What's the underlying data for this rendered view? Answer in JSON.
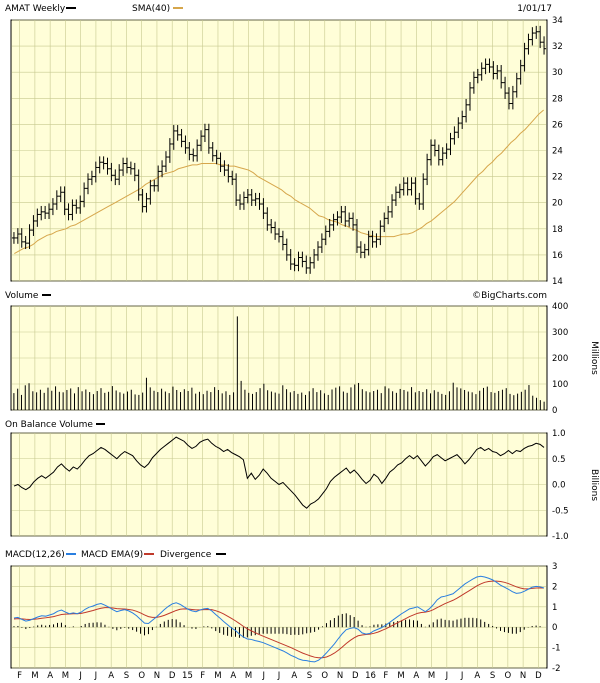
{
  "header": {
    "symbol_label": "AMAT Weekly",
    "sma_label": "SMA(40)",
    "date_label": "1/01/17"
  },
  "watermark": "©BigCharts.com",
  "colors": {
    "background": "#fffed8",
    "grid": "#c7c98f",
    "price": "#000000",
    "sma": "#d6a64b",
    "macd": "#2a7fe0",
    "ema": "#c0392b",
    "volume": "#000000"
  },
  "x_axis_labels": [
    "F",
    "M",
    "A",
    "M",
    "J",
    "J",
    "A",
    "S",
    "O",
    "N",
    "D",
    "15",
    "F",
    "M",
    "A",
    "M",
    "J",
    "J",
    "A",
    "S",
    "O",
    "N",
    "D",
    "16",
    "F",
    "M",
    "A",
    "M",
    "J",
    "J",
    "A",
    "S",
    "O",
    "N",
    "D"
  ],
  "chart_data": [
    {
      "type": "ohlc",
      "panel": "price",
      "legend": [
        "AMAT Weekly",
        "SMA(40)"
      ],
      "ylim": [
        14,
        34
      ],
      "yticks": [
        14,
        16,
        18,
        20,
        22,
        24,
        26,
        28,
        30,
        32,
        34
      ],
      "series": [
        {
          "name": "AMAT Weekly",
          "close": [
            17.3,
            17.6,
            17.0,
            16.9,
            17.9,
            18.6,
            19.1,
            19.3,
            19.2,
            19.5,
            19.9,
            20.5,
            20.8,
            19.5,
            19.1,
            19.8,
            19.6,
            20.1,
            21.1,
            21.8,
            22.0,
            22.7,
            23.1,
            23.0,
            22.6,
            22.1,
            21.8,
            22.5,
            23.0,
            22.7,
            22.6,
            22.1,
            20.6,
            19.7,
            20.3,
            21.3,
            21.3,
            22.4,
            22.8,
            23.5,
            24.5,
            25.5,
            25.2,
            24.7,
            24.2,
            23.7,
            23.6,
            24.4,
            25.1,
            25.6,
            24.2,
            23.6,
            23.4,
            22.8,
            22.5,
            22.0,
            21.8,
            20.2,
            19.9,
            20.4,
            20.6,
            20.2,
            20.3,
            19.9,
            19.2,
            18.3,
            18.1,
            17.6,
            17.4,
            16.8,
            16.0,
            15.3,
            15.2,
            15.8,
            15.5,
            15.0,
            15.4,
            16.0,
            16.6,
            17.2,
            17.8,
            18.3,
            18.7,
            18.9,
            19.3,
            18.6,
            18.8,
            18.3,
            16.6,
            16.2,
            16.4,
            17.4,
            17.0,
            17.2,
            18.2,
            18.8,
            19.3,
            20.2,
            20.8,
            21.0,
            21.5,
            21.0,
            21.5,
            20.3,
            19.9,
            21.8,
            23.3,
            24.4,
            24.0,
            23.3,
            23.8,
            24.1,
            24.9,
            25.4,
            26.1,
            26.6,
            27.5,
            28.8,
            29.6,
            29.8,
            30.3,
            30.6,
            30.4,
            29.9,
            30.1,
            29.2,
            28.4,
            27.6,
            28.5,
            29.5,
            30.5,
            31.8,
            32.5,
            33.0,
            33.1,
            32.3,
            31.8
          ]
        },
        {
          "name": "SMA(40)",
          "values": [
            16.1,
            16.3,
            16.5,
            16.6,
            16.8,
            17.1,
            17.3,
            17.5,
            17.6,
            17.8,
            17.9,
            18.0,
            18.2,
            18.3,
            18.5,
            18.7,
            18.9,
            19.1,
            19.3,
            19.5,
            19.7,
            19.9,
            20.1,
            20.3,
            20.5,
            20.7,
            20.9,
            21.1,
            21.4,
            21.6,
            21.8,
            22.0,
            22.2,
            22.3,
            22.4,
            22.6,
            22.7,
            22.8,
            22.9,
            22.9,
            23.0,
            23.0,
            23.0,
            23.0,
            22.9,
            22.9,
            22.8,
            22.8,
            22.7,
            22.6,
            22.5,
            22.3,
            22.0,
            21.8,
            21.6,
            21.4,
            21.2,
            21.0,
            20.7,
            20.5,
            20.2,
            20.0,
            19.8,
            19.6,
            19.3,
            19.0,
            18.9,
            18.7,
            18.6,
            18.5,
            18.3,
            18.2,
            18.0,
            17.9,
            17.7,
            17.6,
            17.5,
            17.4,
            17.4,
            17.4,
            17.4,
            17.4,
            17.5,
            17.6,
            17.6,
            17.7,
            17.9,
            18.1,
            18.4,
            18.6,
            18.9,
            19.2,
            19.5,
            19.8,
            20.1,
            20.5,
            20.9,
            21.3,
            21.7,
            22.1,
            22.4,
            22.8,
            23.1,
            23.5,
            23.8,
            24.2,
            24.6,
            24.9,
            25.3,
            25.6,
            26.0,
            26.4,
            26.8,
            27.1
          ]
        }
      ]
    },
    {
      "type": "bar",
      "panel": "volume",
      "legend": [
        "Volume"
      ],
      "ylabel": "Millions",
      "ylim": [
        0,
        400
      ],
      "yticks": [
        0,
        100,
        200,
        300,
        400
      ],
      "values": [
        65,
        82,
        58,
        95,
        103,
        72,
        68,
        78,
        66,
        86,
        74,
        91,
        70,
        68,
        77,
        83,
        64,
        88,
        72,
        79,
        69,
        61,
        73,
        84,
        66,
        70,
        92,
        75,
        68,
        63,
        71,
        78,
        60,
        58,
        67,
        124,
        87,
        74,
        69,
        82,
        71,
        65,
        90,
        77,
        69,
        80,
        73,
        86,
        63,
        70,
        61,
        74,
        69,
        88,
        77,
        64,
        72,
        58,
        68,
        360,
        112,
        78,
        66,
        62,
        69,
        84,
        101,
        76,
        71,
        67,
        63,
        95,
        80,
        68,
        73,
        62,
        67,
        58,
        72,
        84,
        69,
        76,
        64,
        58,
        79,
        86,
        91,
        71,
        66,
        87,
        98,
        104,
        80,
        72,
        68,
        73,
        78,
        65,
        91,
        83,
        72,
        66,
        81,
        77,
        71,
        88,
        68,
        73,
        69,
        80,
        64,
        76,
        70,
        62,
        58,
        72,
        105,
        87,
        83,
        77,
        71,
        68,
        61,
        74,
        85,
        90,
        69,
        66,
        73,
        78,
        84,
        62,
        57,
        63,
        70,
        78,
        96,
        55,
        47,
        38,
        32
      ]
    },
    {
      "type": "line",
      "panel": "on_balance_volume",
      "legend": [
        "On Balance Volume"
      ],
      "ylabel": "Billions",
      "ylim": [
        -1.0,
        1.0
      ],
      "yticks": [
        -1.0,
        -0.5,
        0.0,
        0.5,
        1.0
      ],
      "values": [
        -0.03,
        0.0,
        -0.06,
        -0.1,
        -0.05,
        0.05,
        0.12,
        0.17,
        0.12,
        0.18,
        0.24,
        0.34,
        0.4,
        0.32,
        0.26,
        0.34,
        0.3,
        0.38,
        0.48,
        0.56,
        0.6,
        0.66,
        0.72,
        0.68,
        0.62,
        0.56,
        0.5,
        0.58,
        0.64,
        0.6,
        0.56,
        0.46,
        0.38,
        0.33,
        0.4,
        0.52,
        0.6,
        0.68,
        0.74,
        0.8,
        0.86,
        0.92,
        0.88,
        0.84,
        0.76,
        0.7,
        0.74,
        0.82,
        0.86,
        0.88,
        0.8,
        0.74,
        0.7,
        0.64,
        0.68,
        0.62,
        0.58,
        0.54,
        0.48,
        0.12,
        0.22,
        0.1,
        0.18,
        0.3,
        0.22,
        0.12,
        0.06,
        0.0,
        0.04,
        -0.04,
        -0.12,
        -0.2,
        -0.3,
        -0.4,
        -0.46,
        -0.38,
        -0.34,
        -0.28,
        -0.18,
        -0.08,
        0.06,
        0.14,
        0.2,
        0.26,
        0.32,
        0.22,
        0.28,
        0.2,
        0.1,
        0.02,
        0.08,
        0.2,
        0.14,
        0.02,
        0.12,
        0.24,
        0.3,
        0.38,
        0.42,
        0.5,
        0.56,
        0.5,
        0.56,
        0.46,
        0.36,
        0.44,
        0.54,
        0.58,
        0.52,
        0.46,
        0.5,
        0.54,
        0.58,
        0.5,
        0.4,
        0.48,
        0.58,
        0.68,
        0.72,
        0.66,
        0.7,
        0.64,
        0.62,
        0.56,
        0.6,
        0.66,
        0.6,
        0.66,
        0.64,
        0.7,
        0.74,
        0.76,
        0.8,
        0.78,
        0.72
      ]
    },
    {
      "type": "line",
      "panel": "macd",
      "legend": [
        "MACD(12,26)",
        "MACD EMA(9)",
        "Divergence"
      ],
      "ylim": [
        -2,
        3
      ],
      "yticks": [
        -2,
        -1,
        0,
        1,
        2,
        3
      ],
      "series": [
        {
          "name": "MACD(12,26)",
          "values": [
            0.45,
            0.48,
            0.38,
            0.3,
            0.34,
            0.42,
            0.5,
            0.56,
            0.54,
            0.6,
            0.66,
            0.78,
            0.84,
            0.74,
            0.66,
            0.7,
            0.66,
            0.74,
            0.88,
            0.98,
            1.04,
            1.12,
            1.16,
            1.08,
            0.98,
            0.86,
            0.76,
            0.82,
            0.86,
            0.8,
            0.7,
            0.56,
            0.38,
            0.2,
            0.18,
            0.34,
            0.5,
            0.68,
            0.86,
            1.02,
            1.14,
            1.2,
            1.12,
            1.0,
            0.88,
            0.8,
            0.76,
            0.84,
            0.9,
            0.92,
            0.8,
            0.62,
            0.46,
            0.28,
            0.12,
            -0.04,
            -0.16,
            -0.34,
            -0.48,
            -0.58,
            -0.6,
            -0.66,
            -0.7,
            -0.76,
            -0.84,
            -0.92,
            -1.0,
            -1.08,
            -1.16,
            -1.26,
            -1.38,
            -1.46,
            -1.56,
            -1.62,
            -1.64,
            -1.68,
            -1.7,
            -1.62,
            -1.46,
            -1.26,
            -1.04,
            -0.82,
            -0.56,
            -0.32,
            -0.12,
            -0.06,
            -0.02,
            -0.1,
            -0.28,
            -0.34,
            -0.3,
            -0.18,
            -0.1,
            -0.02,
            0.1,
            0.24,
            0.38,
            0.52,
            0.66,
            0.78,
            0.9,
            0.94,
            1.0,
            0.88,
            0.76,
            0.9,
            1.1,
            1.34,
            1.48,
            1.52,
            1.58,
            1.64,
            1.8,
            1.96,
            2.12,
            2.24,
            2.36,
            2.46,
            2.5,
            2.46,
            2.4,
            2.32,
            2.2,
            2.06,
            1.96,
            1.86,
            1.74,
            1.66,
            1.68,
            1.76,
            1.86,
            1.96,
            2.0,
            1.98,
            1.92
          ]
        },
        {
          "name": "MACD EMA(9)",
          "values": [
            0.4,
            0.42,
            0.41,
            0.39,
            0.38,
            0.39,
            0.41,
            0.44,
            0.46,
            0.49,
            0.52,
            0.57,
            0.62,
            0.64,
            0.65,
            0.66,
            0.66,
            0.68,
            0.72,
            0.77,
            0.82,
            0.88,
            0.93,
            0.96,
            0.96,
            0.94,
            0.91,
            0.9,
            0.89,
            0.87,
            0.84,
            0.78,
            0.7,
            0.6,
            0.52,
            0.48,
            0.48,
            0.52,
            0.58,
            0.66,
            0.74,
            0.82,
            0.88,
            0.9,
            0.89,
            0.87,
            0.85,
            0.85,
            0.86,
            0.87,
            0.86,
            0.81,
            0.74,
            0.65,
            0.54,
            0.43,
            0.31,
            0.18,
            0.04,
            -0.08,
            -0.18,
            -0.27,
            -0.36,
            -0.44,
            -0.52,
            -0.6,
            -0.68,
            -0.76,
            -0.84,
            -0.92,
            -1.0,
            -1.09,
            -1.18,
            -1.27,
            -1.34,
            -1.41,
            -1.47,
            -1.5,
            -1.5,
            -1.46,
            -1.38,
            -1.27,
            -1.13,
            -0.97,
            -0.8,
            -0.65,
            -0.52,
            -0.42,
            -0.38,
            -0.36,
            -0.34,
            -0.3,
            -0.24,
            -0.16,
            -0.08,
            0.02,
            0.12,
            0.22,
            0.32,
            0.42,
            0.52,
            0.6,
            0.68,
            0.72,
            0.74,
            0.78,
            0.86,
            0.96,
            1.06,
            1.16,
            1.24,
            1.32,
            1.42,
            1.54,
            1.66,
            1.78,
            1.9,
            2.02,
            2.12,
            2.2,
            2.24,
            2.26,
            2.26,
            2.24,
            2.2,
            2.14,
            2.06,
            1.98,
            1.92,
            1.88,
            1.88,
            1.9,
            1.92,
            1.93,
            1.92
          ]
        },
        {
          "name": "Divergence",
          "values": [
            0.05,
            0.06,
            -0.03,
            -0.09,
            -0.04,
            0.03,
            0.09,
            0.12,
            0.08,
            0.11,
            0.14,
            0.21,
            0.22,
            0.1,
            0.01,
            0.04,
            0.0,
            0.06,
            0.16,
            0.21,
            0.22,
            0.24,
            0.23,
            0.12,
            0.02,
            -0.08,
            -0.15,
            -0.08,
            -0.03,
            -0.07,
            -0.14,
            -0.22,
            -0.32,
            -0.4,
            -0.34,
            -0.14,
            0.02,
            0.16,
            0.28,
            0.36,
            0.4,
            0.38,
            0.24,
            0.1,
            -0.01,
            -0.07,
            -0.09,
            -0.01,
            0.04,
            0.05,
            -0.06,
            -0.19,
            -0.28,
            -0.37,
            -0.42,
            -0.47,
            -0.47,
            -0.52,
            -0.52,
            -0.5,
            -0.42,
            -0.39,
            -0.34,
            -0.32,
            -0.32,
            -0.32,
            -0.32,
            -0.32,
            -0.32,
            -0.34,
            -0.38,
            -0.37,
            -0.38,
            -0.35,
            -0.3,
            -0.27,
            -0.23,
            -0.12,
            0.04,
            0.2,
            0.34,
            0.45,
            0.57,
            0.65,
            0.68,
            0.59,
            0.5,
            0.32,
            0.1,
            0.02,
            0.04,
            0.12,
            0.14,
            0.14,
            0.18,
            0.22,
            0.26,
            0.3,
            0.34,
            0.36,
            0.38,
            0.34,
            0.32,
            0.16,
            0.02,
            0.12,
            0.24,
            0.38,
            0.42,
            0.36,
            0.34,
            0.32,
            0.38,
            0.42,
            0.46,
            0.46,
            0.46,
            0.44,
            0.38,
            0.26,
            0.16,
            0.06,
            -0.06,
            -0.18,
            -0.24,
            -0.28,
            -0.32,
            -0.32,
            -0.24,
            -0.12,
            -0.02,
            0.06,
            0.08,
            0.05,
            0.0
          ]
        }
      ]
    }
  ]
}
